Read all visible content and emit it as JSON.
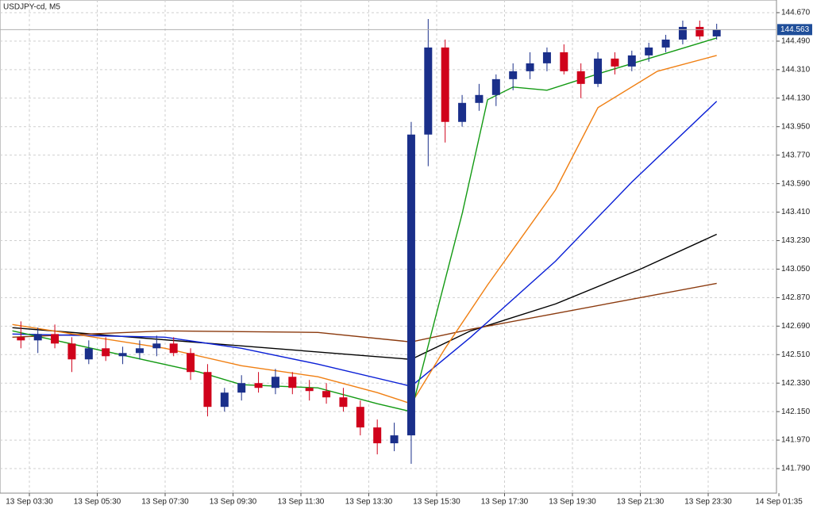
{
  "chart_data": {
    "type": "candlestick",
    "title": "USDJPY-cd, M5",
    "x": [
      "13 Sep 03:00",
      "13 Sep 03:30",
      "13 Sep 04:00",
      "13 Sep 04:30",
      "13 Sep 05:00",
      "13 Sep 05:30",
      "13 Sep 06:00",
      "13 Sep 06:30",
      "13 Sep 07:00",
      "13 Sep 07:30",
      "13 Sep 08:00",
      "13 Sep 08:30",
      "13 Sep 09:00",
      "13 Sep 09:30",
      "13 Sep 10:00",
      "13 Sep 10:30",
      "13 Sep 11:00",
      "13 Sep 11:30",
      "13 Sep 12:00",
      "13 Sep 12:30",
      "13 Sep 13:00",
      "13 Sep 13:30",
      "13 Sep 14:00",
      "13 Sep 14:30",
      "13 Sep 15:00",
      "13 Sep 15:30",
      "13 Sep 16:00",
      "13 Sep 16:30",
      "13 Sep 17:00",
      "13 Sep 17:30",
      "13 Sep 18:00",
      "13 Sep 18:30",
      "13 Sep 19:00",
      "13 Sep 19:30",
      "13 Sep 20:00",
      "13 Sep 20:30",
      "13 Sep 21:00",
      "13 Sep 21:30",
      "13 Sep 22:00",
      "13 Sep 22:30",
      "13 Sep 23:00",
      "13 Sep 23:30"
    ],
    "open": [
      142.62,
      142.6,
      142.64,
      142.58,
      142.48,
      142.55,
      142.5,
      142.52,
      142.55,
      142.58,
      142.52,
      142.4,
      142.18,
      142.27,
      142.33,
      142.3,
      142.37,
      142.3,
      142.28,
      142.24,
      142.18,
      142.05,
      141.95,
      142.0,
      143.9,
      144.45,
      143.98,
      144.1,
      144.15,
      144.25,
      144.3,
      144.35,
      144.42,
      144.3,
      144.22,
      144.38,
      144.33,
      144.4,
      144.45,
      144.5,
      144.58,
      144.52
    ],
    "high": [
      142.72,
      142.68,
      142.7,
      142.62,
      142.6,
      142.62,
      142.56,
      142.6,
      142.63,
      142.62,
      142.55,
      142.45,
      142.3,
      142.38,
      142.4,
      142.42,
      142.4,
      142.35,
      142.33,
      142.3,
      142.22,
      142.1,
      142.08,
      143.98,
      144.63,
      144.5,
      144.15,
      144.22,
      144.28,
      144.35,
      144.42,
      144.45,
      144.47,
      144.35,
      144.42,
      144.42,
      144.43,
      144.48,
      144.53,
      144.62,
      144.62,
      144.6
    ],
    "low": [
      142.55,
      142.52,
      142.55,
      142.4,
      142.45,
      142.47,
      142.45,
      142.48,
      142.5,
      142.5,
      142.35,
      142.12,
      142.15,
      142.22,
      142.27,
      142.26,
      142.26,
      142.22,
      142.2,
      142.15,
      142.0,
      141.88,
      141.9,
      141.82,
      143.7,
      143.85,
      143.95,
      144.05,
      144.08,
      144.18,
      144.25,
      144.3,
      144.28,
      144.13,
      144.2,
      144.28,
      144.3,
      144.36,
      144.42,
      144.47,
      144.5,
      144.5
    ],
    "close": [
      142.6,
      142.64,
      142.58,
      142.48,
      142.55,
      142.5,
      142.52,
      142.55,
      142.58,
      142.52,
      142.4,
      142.18,
      142.27,
      142.33,
      142.3,
      142.37,
      142.3,
      142.28,
      142.24,
      142.18,
      142.05,
      141.95,
      142.0,
      143.9,
      144.45,
      143.98,
      144.1,
      144.15,
      144.25,
      144.3,
      144.35,
      144.42,
      144.3,
      144.22,
      144.38,
      144.33,
      144.4,
      144.45,
      144.5,
      144.58,
      144.52,
      144.563
    ],
    "up_color": "#1a2f8a",
    "down_color": "#d0021b",
    "lines": [
      {
        "color": "#000000",
        "x": [
          "13 Sep 03:00",
          "13 Sep 14:45",
          "13 Sep 16:30",
          "13 Sep 19:00",
          "13 Sep 21:30",
          "13 Sep 23:45"
        ],
        "values": [
          142.68,
          142.48,
          142.66,
          142.83,
          143.05,
          143.27
        ]
      },
      {
        "color": "#8b3a0e",
        "x": [
          "13 Sep 03:00",
          "13 Sep 07:30",
          "13 Sep 12:00",
          "13 Sep 14:45",
          "13 Sep 16:30",
          "13 Sep 19:00",
          "13 Sep 23:45"
        ],
        "values": [
          142.62,
          142.66,
          142.65,
          142.59,
          142.67,
          142.77,
          142.96
        ]
      },
      {
        "color": "#0a1fd6",
        "x": [
          "13 Sep 03:00",
          "13 Sep 07:30",
          "13 Sep 09:45",
          "13 Sep 12:00",
          "13 Sep 14:45",
          "13 Sep 16:30",
          "13 Sep 19:00",
          "13 Sep 21:15",
          "13 Sep 23:45"
        ],
        "values": [
          142.64,
          142.62,
          142.55,
          142.45,
          142.31,
          142.62,
          143.1,
          143.6,
          144.11
        ]
      },
      {
        "color": "#f07f12",
        "x": [
          "13 Sep 03:00",
          "13 Sep 07:30",
          "13 Sep 09:45",
          "13 Sep 12:00",
          "13 Sep 13:45",
          "13 Sep 14:45",
          "13 Sep 15:45",
          "13 Sep 17:00",
          "13 Sep 19:00",
          "13 Sep 20:15",
          "13 Sep 22:00",
          "13 Sep 23:45"
        ],
        "values": [
          142.7,
          142.55,
          142.44,
          142.37,
          142.27,
          142.2,
          142.55,
          142.95,
          143.55,
          144.07,
          144.3,
          144.4
        ]
      },
      {
        "color": "#139a13",
        "x": [
          "13 Sep 03:00",
          "13 Sep 08:30",
          "13 Sep 09:45",
          "13 Sep 12:00",
          "13 Sep 13:45",
          "13 Sep 14:45",
          "13 Sep 16:15",
          "13 Sep 17:00",
          "13 Sep 17:45",
          "13 Sep 18:45",
          "13 Sep 20:30",
          "13 Sep 23:45"
        ],
        "values": [
          142.66,
          142.4,
          142.32,
          142.3,
          142.2,
          142.15,
          143.4,
          144.12,
          144.2,
          144.18,
          144.3,
          144.51
        ]
      }
    ],
    "last_price": 144.563,
    "ylim": [
      141.635,
      144.75
    ],
    "yticks": [
      {
        "value": 141.79,
        "label": "141.790"
      },
      {
        "value": 141.97,
        "label": "141.970"
      },
      {
        "value": 142.15,
        "label": "142.150"
      },
      {
        "value": 142.33,
        "label": "142.330"
      },
      {
        "value": 142.51,
        "label": "142.510"
      },
      {
        "value": 142.69,
        "label": "142.690"
      },
      {
        "value": 142.87,
        "label": "142.870"
      },
      {
        "value": 143.05,
        "label": "143.050"
      },
      {
        "value": 143.23,
        "label": "143.230"
      },
      {
        "value": 143.41,
        "label": "143.410"
      },
      {
        "value": 143.59,
        "label": "143.590"
      },
      {
        "value": 143.77,
        "label": "143.770"
      },
      {
        "value": 143.95,
        "label": "143.950"
      },
      {
        "value": 144.13,
        "label": "144.130"
      },
      {
        "value": 144.31,
        "label": "144.310"
      },
      {
        "value": 144.49,
        "label": "144.490"
      },
      {
        "value": 144.67,
        "label": "144.670"
      }
    ],
    "xticks": [
      "13 Sep 03:30",
      "13 Sep 05:30",
      "13 Sep 07:30",
      "13 Sep 09:30",
      "13 Sep 11:30",
      "13 Sep 13:30",
      "13 Sep 15:30",
      "13 Sep 17:30",
      "13 Sep 19:30",
      "13 Sep 21:30",
      "13 Sep 23:30",
      "14 Sep 01:35"
    ],
    "grid": true
  }
}
